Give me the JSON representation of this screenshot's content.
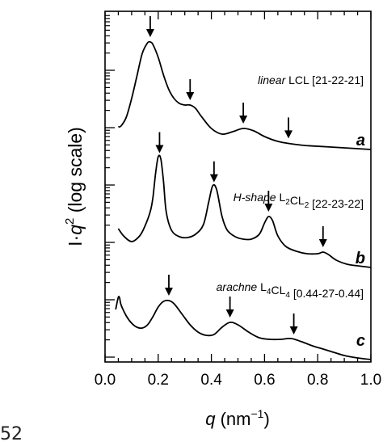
{
  "chart_data": {
    "type": "line",
    "xlabel": "q (nm⁻¹)",
    "xlabel_parts": {
      "var": "q",
      "unit_open": "(nm",
      "exp": "−1",
      "unit_close": ")"
    },
    "ylabel": "I·q² (log scale)",
    "ylabel_parts": {
      "main": "I·",
      "var": "q",
      "exp": "2",
      "rest": " (log scale)"
    },
    "xlim": [
      0.0,
      1.0
    ],
    "x_ticks": [
      "0.0",
      "0.2",
      "0.4",
      "0.6",
      "0.8",
      "1.0"
    ],
    "y_log_scale": true,
    "grid": false,
    "series": [
      {
        "letter": "a",
        "name_prefix": "linear",
        "name_rest": "LCL [21-22-21]",
        "arrows_q": [
          0.17,
          0.32,
          0.52,
          0.69
        ],
        "points": [
          [
            0.05,
            157
          ],
          [
            0.06,
            156
          ],
          [
            0.08,
            145
          ],
          [
            0.1,
            122
          ],
          [
            0.12,
            94
          ],
          [
            0.14,
            66
          ],
          [
            0.16,
            53
          ],
          [
            0.17,
            52
          ],
          [
            0.18,
            55
          ],
          [
            0.2,
            71
          ],
          [
            0.22,
            93
          ],
          [
            0.24,
            111
          ],
          [
            0.26,
            122
          ],
          [
            0.28,
            128
          ],
          [
            0.3,
            130
          ],
          [
            0.32,
            130
          ],
          [
            0.34,
            134
          ],
          [
            0.36,
            143
          ],
          [
            0.4,
            159
          ],
          [
            0.44,
            166
          ],
          [
            0.48,
            163
          ],
          [
            0.52,
            159
          ],
          [
            0.56,
            162
          ],
          [
            0.6,
            169
          ],
          [
            0.65,
            175
          ],
          [
            0.7,
            178
          ],
          [
            0.75,
            180
          ],
          [
            0.8,
            181
          ],
          [
            0.85,
            182
          ],
          [
            0.9,
            183
          ],
          [
            0.95,
            184
          ],
          [
            1.0,
            185
          ]
        ]
      },
      {
        "letter": "b",
        "name_prefix": "H-shape",
        "name_rest": "L2CL2 [22-23-22]",
        "arrows_q": [
          0.205,
          0.41,
          0.615,
          0.82
        ],
        "points": [
          [
            0.05,
            283
          ],
          [
            0.07,
            292
          ],
          [
            0.1,
            299
          ],
          [
            0.13,
            292
          ],
          [
            0.15,
            280
          ],
          [
            0.17,
            262
          ],
          [
            0.18,
            245
          ],
          [
            0.19,
            215
          ],
          [
            0.2,
            194
          ],
          [
            0.21,
            197
          ],
          [
            0.22,
            225
          ],
          [
            0.23,
            262
          ],
          [
            0.25,
            285
          ],
          [
            0.28,
            293
          ],
          [
            0.31,
            294
          ],
          [
            0.34,
            290
          ],
          [
            0.37,
            278
          ],
          [
            0.39,
            250
          ],
          [
            0.405,
            230
          ],
          [
            0.42,
            235
          ],
          [
            0.44,
            268
          ],
          [
            0.46,
            285
          ],
          [
            0.49,
            293
          ],
          [
            0.52,
            296
          ],
          [
            0.55,
            296
          ],
          [
            0.58,
            290
          ],
          [
            0.6,
            276
          ],
          [
            0.615,
            268
          ],
          [
            0.63,
            273
          ],
          [
            0.65,
            292
          ],
          [
            0.68,
            305
          ],
          [
            0.72,
            311
          ],
          [
            0.76,
            314
          ],
          [
            0.8,
            314
          ],
          [
            0.82,
            312
          ],
          [
            0.84,
            315
          ],
          [
            0.87,
            322
          ],
          [
            0.91,
            327
          ],
          [
            0.95,
            329
          ],
          [
            1.0,
            331
          ]
        ]
      },
      {
        "letter": "c",
        "name_prefix": "arachne",
        "name_rest": "L4CL4 [0.44-27-0.44]",
        "arrows_q": [
          0.24,
          0.47,
          0.71
        ],
        "points": [
          [
            0.04,
            383
          ],
          [
            0.05,
            368
          ],
          [
            0.055,
            369
          ],
          [
            0.06,
            377
          ],
          [
            0.08,
            391
          ],
          [
            0.1,
            400
          ],
          [
            0.12,
            405
          ],
          [
            0.14,
            406
          ],
          [
            0.16,
            402
          ],
          [
            0.18,
            392
          ],
          [
            0.2,
            380
          ],
          [
            0.22,
            373
          ],
          [
            0.24,
            372
          ],
          [
            0.26,
            376
          ],
          [
            0.29,
            389
          ],
          [
            0.32,
            402
          ],
          [
            0.35,
            411
          ],
          [
            0.38,
            415
          ],
          [
            0.41,
            414
          ],
          [
            0.44,
            405
          ],
          [
            0.47,
            399
          ],
          [
            0.5,
            402
          ],
          [
            0.54,
            411
          ],
          [
            0.58,
            418
          ],
          [
            0.62,
            420
          ],
          [
            0.66,
            420
          ],
          [
            0.7,
            419
          ],
          [
            0.74,
            423
          ],
          [
            0.78,
            428
          ],
          [
            0.82,
            432
          ],
          [
            0.86,
            436
          ],
          [
            0.9,
            440
          ],
          [
            0.95,
            443
          ],
          [
            1.0,
            445
          ]
        ]
      }
    ]
  },
  "corner_text": "52"
}
